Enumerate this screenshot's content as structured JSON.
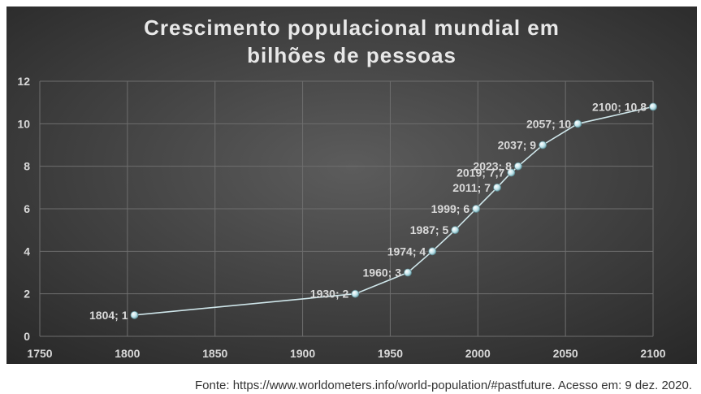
{
  "chart_data": {
    "type": "line",
    "title_line1": "Crescimento populacional mundial em",
    "title_line2": "bilhões de pessoas",
    "xlabel": "",
    "ylabel": "",
    "xlim": [
      1750,
      2100
    ],
    "ylim": [
      0,
      12
    ],
    "x_ticks": [
      1750,
      1800,
      1850,
      1900,
      1950,
      2000,
      2050,
      2100
    ],
    "y_ticks": [
      0,
      2,
      4,
      6,
      8,
      10,
      12
    ],
    "grid": true,
    "legend": "none",
    "points": [
      {
        "x": 1804,
        "y": 1,
        "label": "1804; 1"
      },
      {
        "x": 1930,
        "y": 2,
        "label": "1930; 2"
      },
      {
        "x": 1960,
        "y": 3,
        "label": "1960; 3"
      },
      {
        "x": 1974,
        "y": 4,
        "label": "1974; 4"
      },
      {
        "x": 1987,
        "y": 5,
        "label": "1987; 5"
      },
      {
        "x": 1999,
        "y": 6,
        "label": "1999; 6"
      },
      {
        "x": 2011,
        "y": 7,
        "label": "2011; 7"
      },
      {
        "x": 2019,
        "y": 7.7,
        "label": "2019; 7,7"
      },
      {
        "x": 2023,
        "y": 8,
        "label": "2023; 8"
      },
      {
        "x": 2037,
        "y": 9,
        "label": "2037; 9"
      },
      {
        "x": 2057,
        "y": 10,
        "label": "2057; 10"
      },
      {
        "x": 2100,
        "y": 10.8,
        "label": "2100; 10,8"
      }
    ],
    "colors": {
      "background_center": "#5a5a5a",
      "background_edge": "#262626",
      "line": "#cfe6ea",
      "marker": "#bfe3ea",
      "text": "#d9d9d9",
      "grid": "#6e6e6e"
    }
  },
  "source": "Fonte: https://www.worldometers.info/world-population/#pastfuture. Acesso em: 9 dez. 2020."
}
